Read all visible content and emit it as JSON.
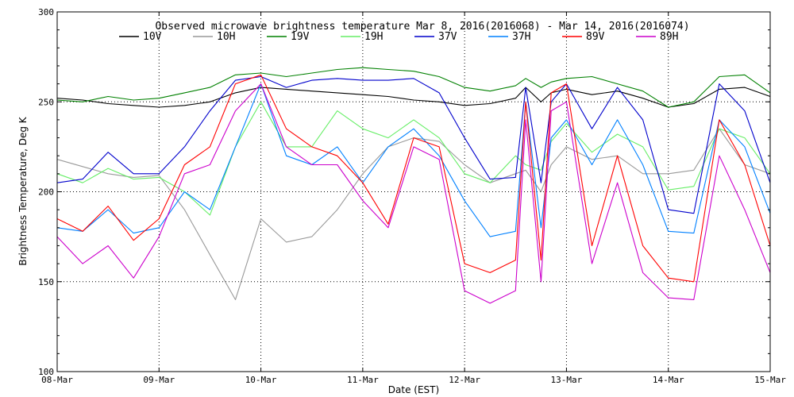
{
  "chart_data": {
    "type": "line",
    "title": "Observed microwave brightness temperature Mar  8, 2016(2016068) - Mar 14, 2016(2016074)",
    "xlabel": "Date (EST)",
    "ylabel": "Brightness Temperature, Deg K",
    "xlim": [
      0,
      7
    ],
    "ylim": [
      100,
      300
    ],
    "x_ticks": [
      {
        "value": 0,
        "label": "08-Mar"
      },
      {
        "value": 1,
        "label": "09-Mar"
      },
      {
        "value": 2,
        "label": "10-Mar"
      },
      {
        "value": 3,
        "label": "11-Mar"
      },
      {
        "value": 4,
        "label": "12-Mar"
      },
      {
        "value": 5,
        "label": "13-Mar"
      },
      {
        "value": 6,
        "label": "14-Mar"
      },
      {
        "value": 7,
        "label": "15-Mar"
      }
    ],
    "y_ticks": [
      100,
      150,
      200,
      250,
      300
    ],
    "grid": "dotted",
    "legend_position": "top",
    "x": [
      0,
      0.25,
      0.5,
      0.75,
      1.0,
      1.25,
      1.5,
      1.75,
      2.0,
      2.25,
      2.5,
      2.75,
      3.0,
      3.25,
      3.5,
      3.75,
      4.0,
      4.25,
      4.5,
      4.6,
      4.75,
      4.85,
      5.0,
      5.25,
      5.5,
      5.75,
      6.0,
      6.25,
      6.5,
      6.75,
      7.0
    ],
    "series": [
      {
        "name": "10V",
        "color": "#000000",
        "values": [
          252,
          251,
          249,
          248,
          247,
          248,
          250,
          255,
          258,
          257,
          256,
          255,
          254,
          253,
          251,
          250,
          248,
          249,
          252,
          258,
          250,
          255,
          257,
          254,
          256,
          252,
          247,
          249,
          257,
          258,
          253
        ]
      },
      {
        "name": "10H",
        "color": "#999999",
        "values": [
          218,
          214,
          210,
          208,
          209,
          190,
          165,
          140,
          185,
          172,
          175,
          190,
          210,
          225,
          230,
          228,
          215,
          205,
          210,
          212,
          200,
          215,
          225,
          218,
          220,
          210,
          210,
          212,
          235,
          215,
          210
        ]
      },
      {
        "name": "19V",
        "color": "#008000",
        "values": [
          251,
          250,
          253,
          251,
          252,
          255,
          258,
          265,
          266,
          264,
          266,
          268,
          269,
          268,
          267,
          264,
          258,
          256,
          259,
          263,
          258,
          261,
          263,
          264,
          260,
          256,
          247,
          250,
          264,
          265,
          255
        ]
      },
      {
        "name": "19H",
        "color": "#66ee66",
        "values": [
          210,
          205,
          213,
          207,
          208,
          200,
          187,
          225,
          250,
          225,
          225,
          245,
          235,
          230,
          240,
          230,
          210,
          205,
          220,
          215,
          212,
          228,
          238,
          222,
          232,
          225,
          201,
          203,
          235,
          230,
          210
        ]
      },
      {
        "name": "37V",
        "color": "#0000cc",
        "values": [
          205,
          207,
          222,
          210,
          210,
          225,
          245,
          262,
          264,
          258,
          262,
          263,
          262,
          262,
          263,
          255,
          230,
          207,
          208,
          258,
          205,
          250,
          260,
          235,
          258,
          240,
          190,
          188,
          260,
          245,
          205
        ]
      },
      {
        "name": "37H",
        "color": "#0080ff",
        "values": [
          180,
          178,
          190,
          177,
          180,
          200,
          190,
          225,
          260,
          220,
          215,
          225,
          205,
          225,
          235,
          220,
          195,
          175,
          178,
          250,
          180,
          230,
          240,
          215,
          240,
          215,
          178,
          177,
          240,
          225,
          188
        ]
      },
      {
        "name": "89V",
        "color": "#ff0000",
        "values": [
          185,
          178,
          192,
          173,
          185,
          215,
          225,
          260,
          265,
          235,
          225,
          220,
          205,
          182,
          230,
          225,
          160,
          155,
          162,
          250,
          162,
          255,
          260,
          170,
          220,
          170,
          152,
          150,
          240,
          215,
          170
        ]
      },
      {
        "name": "89H",
        "color": "#cc00cc",
        "values": [
          175,
          160,
          170,
          152,
          175,
          210,
          215,
          245,
          260,
          225,
          215,
          215,
          195,
          180,
          225,
          218,
          145,
          138,
          145,
          240,
          150,
          245,
          250,
          160,
          205,
          155,
          141,
          140,
          220,
          190,
          155
        ]
      }
    ]
  }
}
